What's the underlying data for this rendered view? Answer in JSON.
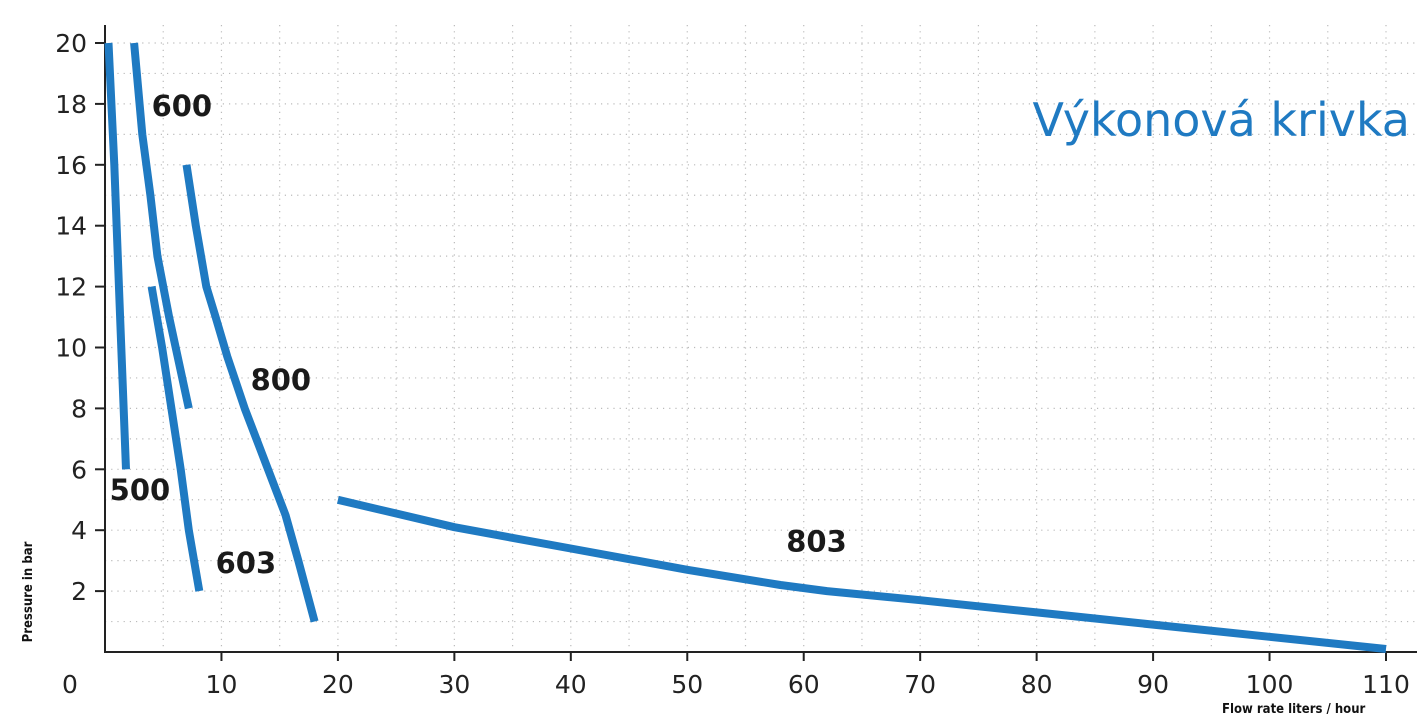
{
  "chart_data": {
    "type": "line",
    "title": "Výkonová krivka",
    "xlabel": "Flow rate liters / hour",
    "ylabel": "Pressure in bar",
    "xlim": [
      0,
      110
    ],
    "ylim": [
      0,
      20
    ],
    "x_ticks": [
      0,
      10,
      20,
      30,
      40,
      50,
      60,
      70,
      80,
      90,
      100,
      110
    ],
    "y_ticks": [
      2,
      4,
      6,
      8,
      10,
      12,
      14,
      16,
      18,
      20
    ],
    "grid": true,
    "legend": "none",
    "colors": {
      "line": "#1f7ac2",
      "title": "#1f7ac2",
      "axis": "#222222",
      "grid": "#bbbbbb"
    },
    "series": [
      {
        "name": "500",
        "x": [
          0.3,
          0.8,
          1.3,
          1.8
        ],
        "y": [
          20,
          16,
          11,
          6
        ]
      },
      {
        "name": "600",
        "x": [
          2.5,
          3.2,
          3.9,
          4.5,
          5.5,
          7.2
        ],
        "y": [
          20,
          17,
          15,
          13,
          11,
          8
        ]
      },
      {
        "name": "603",
        "x": [
          4.0,
          4.9,
          5.7,
          6.5,
          7.2,
          8.1
        ],
        "y": [
          12,
          10,
          8,
          6,
          4,
          2
        ]
      },
      {
        "name": "800",
        "x": [
          7.0,
          7.8,
          8.7,
          9.5,
          10.5,
          12.0,
          14.0,
          15.5,
          16.6,
          18.0
        ],
        "y": [
          16,
          14,
          12,
          11,
          9.7,
          8,
          6,
          4.5,
          3,
          1
        ]
      },
      {
        "name": "803",
        "x": [
          20,
          30,
          40,
          50,
          58,
          62,
          70,
          80,
          90,
          100,
          110
        ],
        "y": [
          5,
          4.1,
          3.4,
          2.7,
          2.2,
          2.0,
          1.7,
          1.3,
          0.9,
          0.5,
          0.1
        ]
      }
    ]
  }
}
